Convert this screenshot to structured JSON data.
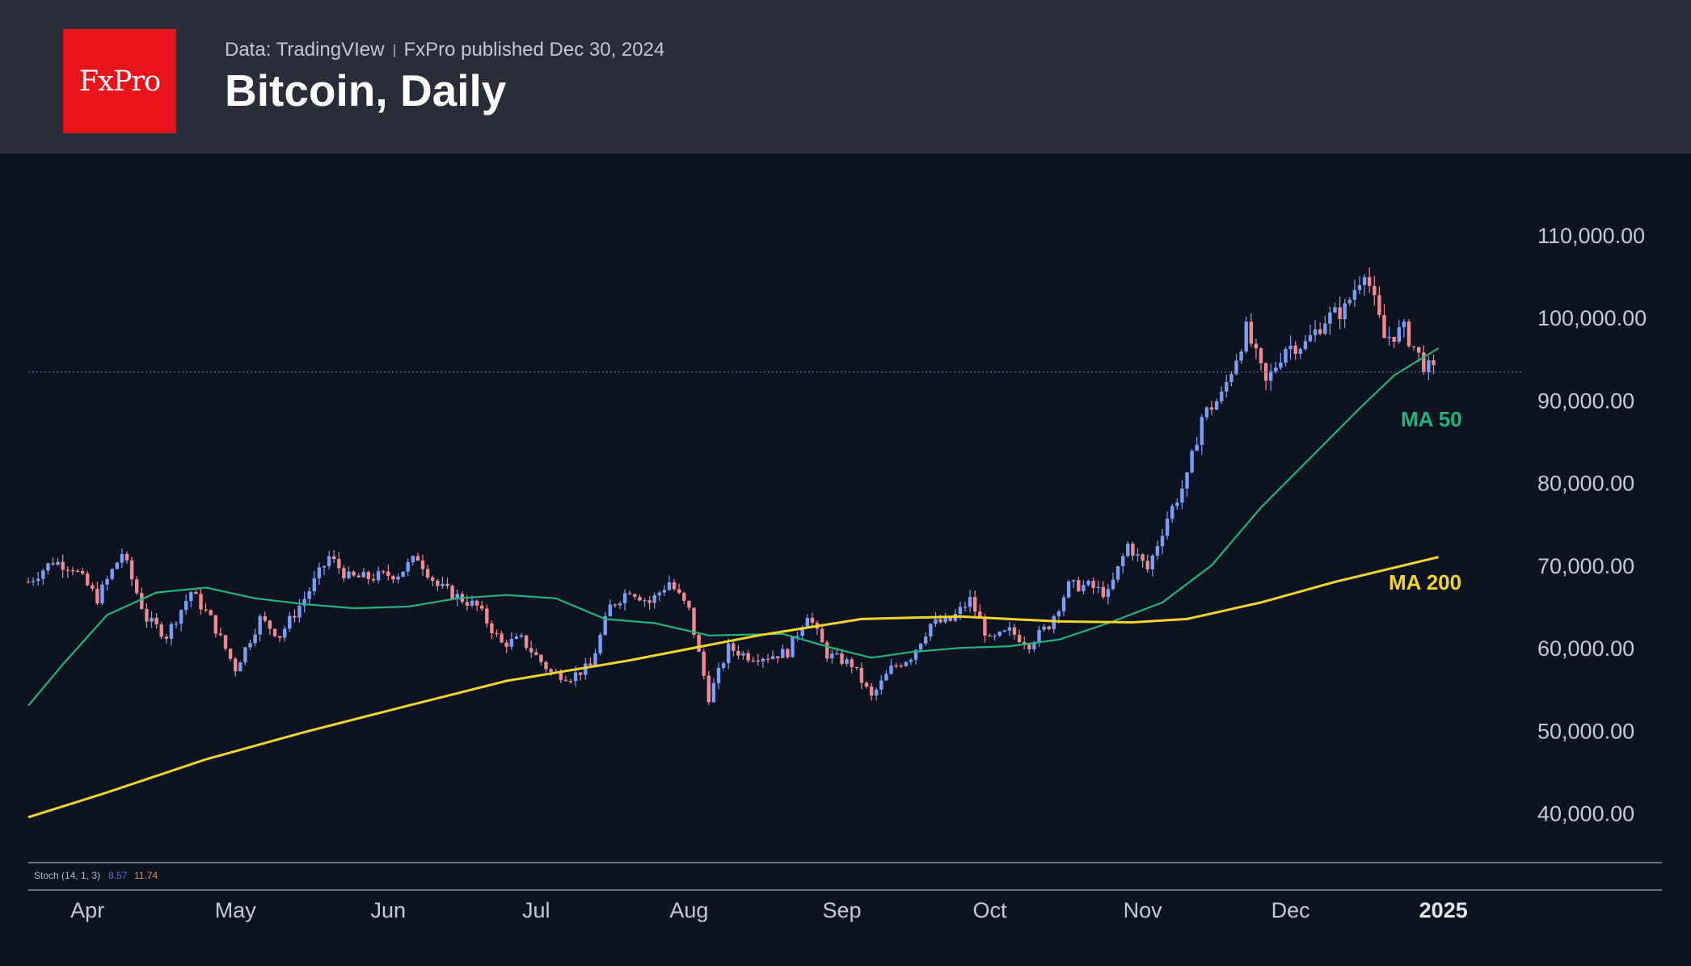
{
  "header": {
    "logo_text": "FxPro",
    "data_source": "Data: TradingVIew",
    "published": "FxPro published Dec 30, 2024",
    "title": "Bitcoin, Daily"
  },
  "indicator": {
    "name": "Stoch (14, 1, 3)",
    "k": "8.57",
    "d": "11.74"
  },
  "colors": {
    "background": "#0d1320",
    "header": "#2a2d37",
    "logo": "#e8141b",
    "up_candle": "#7b9ef5",
    "down_candle": "#f08a92",
    "ma50": "#22b27c",
    "ma200": "#f2d42c",
    "axis_text": "#c5c9d3",
    "stoch_k": "#4e6fd8",
    "stoch_d": "#f08a24"
  },
  "chart_data": {
    "type": "candlestick",
    "title": "Bitcoin, Daily",
    "ylim": [
      34000,
      114000
    ],
    "y_ticks": [
      110000,
      100000,
      90000,
      80000,
      70000,
      60000,
      50000,
      40000
    ],
    "y_tick_labels": [
      "110,000.00",
      "100,000.00",
      "90,000.00",
      "80,000.00",
      "70,000.00",
      "60,000.00",
      "50,000.00",
      "40,000.00"
    ],
    "x_range": [
      "2024-03-20",
      "2025-01-10"
    ],
    "x_ticks": [
      {
        "date": "2024-04-01",
        "label": "Apr"
      },
      {
        "date": "2024-05-01",
        "label": "May"
      },
      {
        "date": "2024-06-01",
        "label": "Jun"
      },
      {
        "date": "2024-07-01",
        "label": "Jul"
      },
      {
        "date": "2024-08-01",
        "label": "Aug"
      },
      {
        "date": "2024-09-01",
        "label": "Sep"
      },
      {
        "date": "2024-10-01",
        "label": "Oct"
      },
      {
        "date": "2024-11-01",
        "label": "Nov"
      },
      {
        "date": "2024-12-01",
        "label": "Dec"
      },
      {
        "date": "2025-01-01",
        "label": "2025"
      }
    ],
    "last_price": 93400,
    "series": [
      {
        "name": "MA 50",
        "points": [
          [
            "2024-03-20",
            53000
          ],
          [
            "2024-03-27",
            58000
          ],
          [
            "2024-04-05",
            64000
          ],
          [
            "2024-04-15",
            66700
          ],
          [
            "2024-04-25",
            67300
          ],
          [
            "2024-05-05",
            66000
          ],
          [
            "2024-05-15",
            65300
          ],
          [
            "2024-05-25",
            64800
          ],
          [
            "2024-06-05",
            65000
          ],
          [
            "2024-06-15",
            66000
          ],
          [
            "2024-06-25",
            66400
          ],
          [
            "2024-07-05",
            66000
          ],
          [
            "2024-07-15",
            63500
          ],
          [
            "2024-07-25",
            63000
          ],
          [
            "2024-08-05",
            61500
          ],
          [
            "2024-08-20",
            61700
          ],
          [
            "2024-08-30",
            60000
          ],
          [
            "2024-09-07",
            58800
          ],
          [
            "2024-09-15",
            59500
          ],
          [
            "2024-09-25",
            60000
          ],
          [
            "2024-10-05",
            60200
          ],
          [
            "2024-10-15",
            61000
          ],
          [
            "2024-10-25",
            63000
          ],
          [
            "2024-11-05",
            65500
          ],
          [
            "2024-11-15",
            70000
          ],
          [
            "2024-11-25",
            77000
          ],
          [
            "2024-12-05",
            83000
          ],
          [
            "2024-12-15",
            89000
          ],
          [
            "2024-12-22",
            93000
          ],
          [
            "2024-12-31",
            96300
          ]
        ]
      },
      {
        "name": "MA 200",
        "points": [
          [
            "2024-03-20",
            39500
          ],
          [
            "2024-04-05",
            42500
          ],
          [
            "2024-04-25",
            46500
          ],
          [
            "2024-05-15",
            49800
          ],
          [
            "2024-06-05",
            53000
          ],
          [
            "2024-06-25",
            56000
          ],
          [
            "2024-07-20",
            58500
          ],
          [
            "2024-08-15",
            61500
          ],
          [
            "2024-09-05",
            63500
          ],
          [
            "2024-09-25",
            63800
          ],
          [
            "2024-10-15",
            63200
          ],
          [
            "2024-10-30",
            63100
          ],
          [
            "2024-11-10",
            63500
          ],
          [
            "2024-11-25",
            65500
          ],
          [
            "2024-12-10",
            68000
          ],
          [
            "2024-12-31",
            71000
          ]
        ]
      }
    ],
    "annotations": [
      {
        "text": "MA 50",
        "color": "#22b27c"
      },
      {
        "text": "MA 200",
        "color": "#f2d42c"
      }
    ],
    "candles_close": [
      [
        "2024-03-20",
        68000
      ],
      [
        "2024-03-25",
        70500
      ],
      [
        "2024-03-29",
        69800
      ],
      [
        "2024-04-03",
        66000
      ],
      [
        "2024-04-08",
        71500
      ],
      [
        "2024-04-13",
        63500
      ],
      [
        "2024-04-17",
        61500
      ],
      [
        "2024-04-22",
        66800
      ],
      [
        "2024-04-26",
        63500
      ],
      [
        "2024-05-01",
        57500
      ],
      [
        "2024-05-06",
        63500
      ],
      [
        "2024-05-10",
        61500
      ],
      [
        "2024-05-15",
        66000
      ],
      [
        "2024-05-20",
        71000
      ],
      [
        "2024-05-24",
        68500
      ],
      [
        "2024-05-28",
        68500
      ],
      [
        "2024-06-03",
        69000
      ],
      [
        "2024-06-07",
        71000
      ],
      [
        "2024-06-11",
        67500
      ],
      [
        "2024-06-15",
        66200
      ],
      [
        "2024-06-19",
        65000
      ],
      [
        "2024-06-24",
        60500
      ],
      [
        "2024-06-28",
        61000
      ],
      [
        "2024-07-04",
        57000
      ],
      [
        "2024-07-08",
        56500
      ],
      [
        "2024-07-12",
        57800
      ],
      [
        "2024-07-16",
        65000
      ],
      [
        "2024-07-20",
        67100
      ],
      [
        "2024-07-24",
        65500
      ],
      [
        "2024-07-28",
        68000
      ],
      [
        "2024-08-01",
        64500
      ],
      [
        "2024-08-05",
        54000
      ],
      [
        "2024-08-09",
        60000
      ],
      [
        "2024-08-13",
        59000
      ],
      [
        "2024-08-17",
        59000
      ],
      [
        "2024-08-21",
        59500
      ],
      [
        "2024-08-25",
        64200
      ],
      [
        "2024-08-29",
        59200
      ],
      [
        "2024-09-03",
        58000
      ],
      [
        "2024-09-07",
        54000
      ],
      [
        "2024-09-11",
        57500
      ],
      [
        "2024-09-15",
        59000
      ],
      [
        "2024-09-19",
        62900
      ],
      [
        "2024-09-23",
        63300
      ],
      [
        "2024-09-27",
        65800
      ],
      [
        "2024-10-01",
        60800
      ],
      [
        "2024-10-05",
        62000
      ],
      [
        "2024-10-09",
        60500
      ],
      [
        "2024-10-13",
        62800
      ],
      [
        "2024-10-17",
        67500
      ],
      [
        "2024-10-21",
        67500
      ],
      [
        "2024-10-25",
        66500
      ],
      [
        "2024-10-29",
        72500
      ],
      [
        "2024-11-02",
        69500
      ],
      [
        "2024-11-06",
        75800
      ],
      [
        "2024-11-10",
        80500
      ],
      [
        "2024-11-13",
        88000
      ],
      [
        "2024-11-17",
        90500
      ],
      [
        "2024-11-22",
        98500
      ],
      [
        "2024-11-26",
        92000
      ],
      [
        "2024-11-30",
        96500
      ],
      [
        "2024-12-04",
        96800
      ],
      [
        "2024-12-08",
        99800
      ],
      [
        "2024-12-12",
        101000
      ],
      [
        "2024-12-16",
        106000
      ],
      [
        "2024-12-20",
        97500
      ],
      [
        "2024-12-24",
        98500
      ],
      [
        "2024-12-28",
        94300
      ],
      [
        "2024-12-30",
        93400
      ]
    ]
  }
}
